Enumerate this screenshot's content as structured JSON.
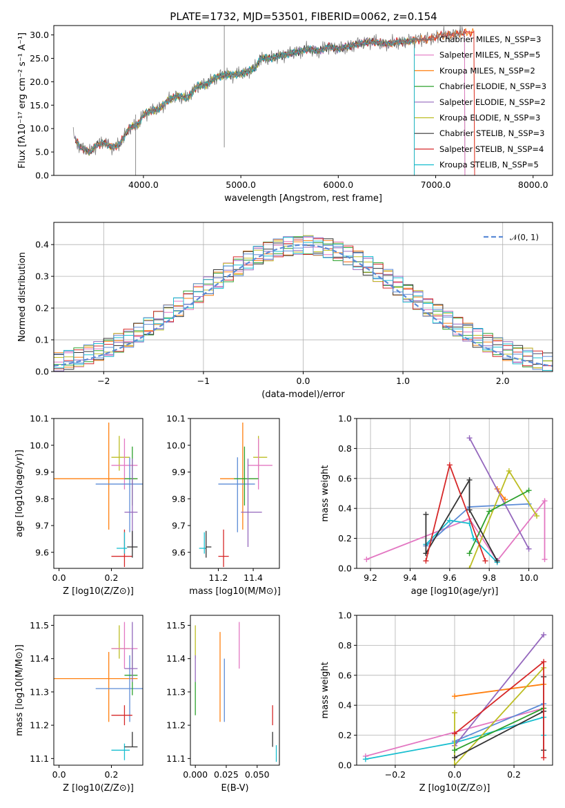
{
  "figure": {
    "title": "PLATE=1732, MJD=53501, FIBERID=0062, z=0.154"
  },
  "chart_data": [
    {
      "id": "spectrum",
      "type": "line",
      "xlabel": "wavelength [Angstrom, rest frame]",
      "ylabel": "Flux [fλ10⁻¹⁷ erg cm⁻² s⁻¹ A⁻¹]",
      "xlim": [
        3080,
        8200
      ],
      "ylim": [
        0,
        32
      ],
      "xticks": [
        4000,
        5000,
        6000,
        7000,
        8000
      ],
      "yticks": [
        0,
        5,
        10,
        15,
        20,
        25,
        30
      ],
      "grid": false,
      "legend_position": "top-right",
      "observed": {
        "color": "#7f7f7f",
        "x": [
          3280,
          3350,
          3450,
          3520,
          3600,
          3680,
          3750,
          3850,
          3950,
          4000,
          4100,
          4150,
          4250,
          4350,
          4450,
          4550,
          4650,
          4750,
          4850,
          4950,
          5050,
          5150,
          5200,
          5300,
          5400,
          5500,
          5600,
          5700,
          5800,
          5900,
          6000,
          6100,
          6200,
          6300,
          6400,
          6500,
          6600,
          6700,
          6800,
          6900,
          7000,
          7050,
          7150,
          7300
        ],
        "y": [
          8.5,
          6.0,
          5.0,
          6.5,
          7.0,
          6.0,
          6.5,
          10.0,
          11.0,
          13.0,
          14.0,
          14.0,
          16.0,
          17.0,
          16.5,
          19.0,
          19.5,
          21.0,
          21.5,
          21.5,
          22.0,
          23.0,
          25.0,
          25.0,
          25.5,
          26.0,
          26.5,
          27.0,
          26.5,
          27.5,
          27.0,
          27.5,
          28.0,
          28.5,
          28.5,
          28.0,
          28.5,
          28.5,
          29.0,
          29.0,
          29.5,
          30.0,
          30.0,
          30.5
        ]
      },
      "features": [
        {
          "x": 4830,
          "y_low": 6,
          "y_high": 32
        },
        {
          "x": 3920,
          "y_low": 0,
          "y_high": 13
        }
      ],
      "series": [
        {
          "name": "Chabrier MILES, N_SSP=3",
          "color": "#777777",
          "x_end": 7300
        },
        {
          "name": "Salpeter MILES, N_SSP=5",
          "color": "#e377c2",
          "x_end": 7300
        },
        {
          "name": "Kroupa MILES, N_SSP=2",
          "color": "#ff7f0e",
          "x_end": 7400
        },
        {
          "name": "Chabrier ELODIE, N_SSP=3",
          "color": "#2ca02c",
          "x_end": 6780
        },
        {
          "name": "Salpeter ELODIE, N_SSP=2",
          "color": "#9467bd",
          "x_end": 6780
        },
        {
          "name": "Kroupa ELODIE, N_SSP=3",
          "color": "#bcbd22",
          "x_end": 6780
        },
        {
          "name": "Chabrier STELIB, N_SSP=3",
          "color": "#333333",
          "x_end": 6780
        },
        {
          "name": "Salpeter STELIB, N_SSP=4",
          "color": "#d62728",
          "x_end": 7400
        },
        {
          "name": "Kroupa STELIB, N_SSP=5",
          "color": "#17becf",
          "x_end": 6780
        }
      ]
    },
    {
      "id": "residuals",
      "type": "histogram",
      "xlabel": "(data-model)/error",
      "ylabel": "Normed distribution",
      "xlim": [
        -2.5,
        2.5
      ],
      "ylim": [
        0,
        0.47
      ],
      "xticks": [
        -2,
        -1,
        0,
        1,
        2
      ],
      "yticks": [
        0.0,
        0.1,
        0.2,
        0.3,
        0.4
      ],
      "grid": true,
      "legend": [
        {
          "label": "𝒩(0, 1)",
          "style": "dashed",
          "color": "#5b8bd6"
        }
      ],
      "legend_position": "top-right",
      "bin_edges": [
        -2.5,
        -2.4,
        -2.3,
        -2.2,
        -2.1,
        -2.0,
        -1.9,
        -1.8,
        -1.7,
        -1.6,
        -1.5,
        -1.4,
        -1.3,
        -1.2,
        -1.1,
        -1.0,
        -0.9,
        -0.8,
        -0.7,
        -0.6,
        -0.5,
        -0.4,
        -0.3,
        -0.2,
        -0.1,
        0.0,
        0.1,
        0.2,
        0.3,
        0.4,
        0.5,
        0.6,
        0.7,
        0.8,
        0.9,
        1.0,
        1.1,
        1.2,
        1.3,
        1.4,
        1.5,
        1.6,
        1.7,
        1.8,
        1.9,
        2.0,
        2.1,
        2.2,
        2.3,
        2.4,
        2.5
      ],
      "hist_colors": [
        "#e377c2",
        "#ff7f0e",
        "#2ca02c",
        "#9467bd",
        "#bcbd22",
        "#333333",
        "#d62728",
        "#17becf",
        "#5b8bd6"
      ],
      "spread": 0.03
    },
    {
      "id": "age_vs_Z",
      "type": "errorbar",
      "xlabel": "Z [log10(Z/Z⊙)]",
      "ylabel": "age  [log10(age/yr)]",
      "xlim": [
        -0.02,
        0.32
      ],
      "ylim": [
        9.54,
        10.1
      ],
      "xticks": [
        0.0,
        0.2
      ],
      "yticks": [
        9.6,
        9.7,
        9.8,
        9.9,
        10.0,
        10.1
      ],
      "points": [
        {
          "x": 0.19,
          "y": 9.875,
          "xerr": [
            0.21,
            0.11
          ],
          "yerr": [
            0.19,
            0.21
          ],
          "color": "#ff7f0e"
        },
        {
          "x": 0.23,
          "y": 9.955,
          "xerr": [
            0.03,
            0.04
          ],
          "yerr": [
            0.05,
            0.08
          ],
          "color": "#bcbd22"
        },
        {
          "x": 0.25,
          "y": 9.925,
          "xerr": [
            0.05,
            0.05
          ],
          "yerr": [
            0.09,
            0.1
          ],
          "color": "#e377c2"
        },
        {
          "x": 0.27,
          "y": 9.855,
          "xerr": [
            0.13,
            0.05
          ],
          "yerr": [
            0.18,
            0.1
          ],
          "color": "#5b8bd6"
        },
        {
          "x": 0.28,
          "y": 9.875,
          "xerr": [
            0.03,
            0.02
          ],
          "yerr": [
            0.1,
            0.12
          ],
          "color": "#2ca02c"
        },
        {
          "x": 0.28,
          "y": 9.75,
          "xerr": [
            0.03,
            0.02
          ],
          "yerr": [
            0.13,
            0.2
          ],
          "color": "#9467bd"
        },
        {
          "x": 0.25,
          "y": 9.585,
          "xerr": [
            0.05,
            0.03
          ],
          "yerr": [
            0.04,
            0.1
          ],
          "color": "#d62728"
        },
        {
          "x": 0.25,
          "y": 9.615,
          "xerr": [
            0.03,
            0.01
          ],
          "yerr": [
            0.02,
            0.06
          ],
          "color": "#17becf"
        },
        {
          "x": 0.28,
          "y": 9.62,
          "xerr": [
            0.02,
            0.02
          ],
          "yerr": [
            0.04,
            0.06
          ],
          "color": "#333333"
        }
      ]
    },
    {
      "id": "age_vs_mass",
      "type": "errorbar",
      "xlabel": "mass [log10(M/M⊙)]",
      "ylabel": "",
      "xlim": [
        11.04,
        11.55
      ],
      "ylim": [
        9.54,
        10.1
      ],
      "xticks": [
        11.2,
        11.4
      ],
      "yticks": [
        9.6,
        9.7,
        9.8,
        9.9,
        10.0,
        10.1
      ],
      "points": [
        {
          "x": 11.34,
          "y": 9.875,
          "xerr": [
            0.13,
            0.08
          ],
          "yerr": [
            0.19,
            0.21
          ],
          "color": "#ff7f0e"
        },
        {
          "x": 11.43,
          "y": 9.955,
          "xerr": [
            0.03,
            0.05
          ],
          "yerr": [
            0.05,
            0.08
          ],
          "color": "#bcbd22"
        },
        {
          "x": 11.43,
          "y": 9.925,
          "xerr": [
            0.06,
            0.08
          ],
          "yerr": [
            0.09,
            0.1
          ],
          "color": "#e377c2"
        },
        {
          "x": 11.31,
          "y": 9.855,
          "xerr": [
            0.11,
            0.1
          ],
          "yerr": [
            0.18,
            0.1
          ],
          "color": "#5b8bd6"
        },
        {
          "x": 11.35,
          "y": 9.875,
          "xerr": [
            0.06,
            0.08
          ],
          "yerr": [
            0.1,
            0.12
          ],
          "color": "#2ca02c"
        },
        {
          "x": 11.37,
          "y": 9.75,
          "xerr": [
            0.04,
            0.08
          ],
          "yerr": [
            0.13,
            0.2
          ],
          "color": "#9467bd"
        },
        {
          "x": 11.23,
          "y": 9.585,
          "xerr": [
            0.03,
            0.03
          ],
          "yerr": [
            0.04,
            0.1
          ],
          "color": "#d62728"
        },
        {
          "x": 11.12,
          "y": 9.615,
          "xerr": [
            0.03,
            0.01
          ],
          "yerr": [
            0.02,
            0.06
          ],
          "color": "#17becf"
        },
        {
          "x": 11.13,
          "y": 9.62,
          "xerr": [
            0.0,
            0.03
          ],
          "yerr": [
            0.04,
            0.06
          ],
          "color": "#333333"
        }
      ]
    },
    {
      "id": "weight_vs_age",
      "type": "line",
      "xlabel": "age  [log10(age/yr)]",
      "ylabel": "mass weight",
      "xlim": [
        9.13,
        10.12
      ],
      "ylim": [
        0,
        1.0
      ],
      "xticks": [
        9.2,
        9.4,
        9.6,
        9.8,
        10.0
      ],
      "yticks": [
        0.0,
        0.2,
        0.4,
        0.6,
        0.8,
        1.0
      ],
      "grid": true,
      "series": [
        {
          "color": "#e377c2",
          "x": [
            9.18,
            9.7,
            9.84,
            10.08,
            10.08
          ],
          "y": [
            0.06,
            0.33,
            0.05,
            0.45,
            0.06
          ]
        },
        {
          "color": "#ff7f0e",
          "x": [
            9.84,
            9.88
          ],
          "y": [
            0.53,
            0.46
          ]
        },
        {
          "color": "#5b8bd6",
          "x": [
            9.48,
            9.7,
            10.0
          ],
          "y": [
            0.15,
            0.41,
            0.43
          ]
        },
        {
          "color": "#17becf",
          "x": [
            9.48,
            9.6,
            9.7,
            9.72,
            9.84
          ],
          "y": [
            0.16,
            0.32,
            0.3,
            0.2,
            0.04
          ]
        },
        {
          "color": "#9467bd",
          "x": [
            9.7,
            10.0
          ],
          "y": [
            0.87,
            0.13
          ]
        },
        {
          "color": "#bcbd22",
          "x": [
            9.7,
            9.9,
            10.04
          ],
          "y": [
            0.0,
            0.65,
            0.35
          ]
        },
        {
          "color": "#2ca02c",
          "x": [
            9.7,
            9.8,
            10.0
          ],
          "y": [
            0.1,
            0.38,
            0.52
          ]
        },
        {
          "color": "#333333",
          "x": [
            9.48,
            9.48,
            9.7,
            9.7,
            9.84
          ],
          "y": [
            0.36,
            0.1,
            0.59,
            0.39,
            0.05
          ]
        },
        {
          "color": "#d62728",
          "x": [
            9.48,
            9.6,
            9.78
          ],
          "y": [
            0.05,
            0.69,
            0.05
          ]
        }
      ]
    },
    {
      "id": "mass_vs_Z",
      "type": "errorbar",
      "xlabel": "Z [log10(Z/Z⊙)]",
      "ylabel": "mass [log10(M/M⊙)]",
      "xlim": [
        -0.02,
        0.32
      ],
      "ylim": [
        11.08,
        11.53
      ],
      "xticks": [
        0.0,
        0.2
      ],
      "yticks": [
        11.1,
        11.2,
        11.3,
        11.4,
        11.5
      ],
      "points": [
        {
          "x": 0.19,
          "y": 11.34,
          "xerr": [
            0.21,
            0.11
          ],
          "yerr": [
            0.13,
            0.08
          ],
          "color": "#ff7f0e"
        },
        {
          "x": 0.23,
          "y": 11.43,
          "xerr": [
            0.03,
            0.04
          ],
          "yerr": [
            0.03,
            0.07
          ],
          "color": "#bcbd22"
        },
        {
          "x": 0.25,
          "y": 11.43,
          "xerr": [
            0.05,
            0.05
          ],
          "yerr": [
            0.06,
            0.08
          ],
          "color": "#e377c2"
        },
        {
          "x": 0.27,
          "y": 11.31,
          "xerr": [
            0.13,
            0.05
          ],
          "yerr": [
            0.1,
            0.1
          ],
          "color": "#5b8bd6"
        },
        {
          "x": 0.28,
          "y": 11.35,
          "xerr": [
            0.03,
            0.02
          ],
          "yerr": [
            0.06,
            0.08
          ],
          "color": "#2ca02c"
        },
        {
          "x": 0.28,
          "y": 11.37,
          "xerr": [
            0.03,
            0.02
          ],
          "yerr": [
            0.04,
            0.14
          ],
          "color": "#9467bd"
        },
        {
          "x": 0.25,
          "y": 11.23,
          "xerr": [
            0.05,
            0.03
          ],
          "yerr": [
            0.03,
            0.03
          ],
          "color": "#d62728"
        },
        {
          "x": 0.25,
          "y": 11.125,
          "xerr": [
            0.05,
            0.02
          ],
          "yerr": [
            0.03,
            0.02
          ],
          "color": "#17becf"
        },
        {
          "x": 0.28,
          "y": 11.135,
          "xerr": [
            0.03,
            0.02
          ],
          "yerr": [
            0.0,
            0.045
          ],
          "color": "#333333"
        }
      ]
    },
    {
      "id": "mass_vs_EBV",
      "type": "errorbar",
      "xlabel": "E(B-V)",
      "ylabel": "",
      "xlim": [
        -0.004,
        0.068
      ],
      "ylim": [
        11.08,
        11.53
      ],
      "xticks": [
        0.0,
        0.025,
        0.05
      ],
      "xticklabels": [
        "0.000",
        "0.025",
        "0.050"
      ],
      "yticks": [
        11.1,
        11.2,
        11.3,
        11.4,
        11.5
      ],
      "points": [
        {
          "x": 0.0,
          "y": 11.43,
          "yerr": [
            0.03,
            0.07
          ],
          "color": "#bcbd22"
        },
        {
          "x": 0.0,
          "y": 11.37,
          "yerr": [
            0.04,
            0.04
          ],
          "color": "#9467bd"
        },
        {
          "x": 0.0,
          "y": 11.3,
          "yerr": [
            0.07,
            0.03
          ],
          "color": "#2ca02c"
        },
        {
          "x": 0.02,
          "y": 11.34,
          "yerr": [
            0.13,
            0.14
          ],
          "color": "#ff7f0e"
        },
        {
          "x": 0.0235,
          "y": 11.3,
          "yerr": [
            0.09,
            0.1
          ],
          "color": "#5b8bd6"
        },
        {
          "x": 0.0355,
          "y": 11.44,
          "yerr": [
            0.07,
            0.07
          ],
          "color": "#e377c2"
        },
        {
          "x": 0.0625,
          "y": 11.23,
          "yerr": [
            0.03,
            0.03
          ],
          "color": "#d62728"
        },
        {
          "x": 0.0625,
          "y": 11.16,
          "yerr": [
            0.025,
            0.02
          ],
          "color": "#333333"
        },
        {
          "x": 0.0655,
          "y": 11.12,
          "yerr": [
            0.03,
            0.02
          ],
          "color": "#17becf"
        }
      ]
    },
    {
      "id": "weight_vs_Z",
      "type": "line",
      "xlabel": "Z [log10(Z/Z⊙)]",
      "ylabel": "mass weight",
      "xlim": [
        -0.33,
        0.33
      ],
      "ylim": [
        0,
        1.0
      ],
      "xticks": [
        -0.2,
        0.0,
        0.2
      ],
      "yticks": [
        0.0,
        0.2,
        0.4,
        0.6,
        0.8,
        1.0
      ],
      "grid": true,
      "series": [
        {
          "color": "#e377c2",
          "x": [
            -0.3,
            0.3
          ],
          "y": [
            0.06,
            0.38
          ]
        },
        {
          "color": "#17becf",
          "x": [
            -0.3,
            0.0,
            0.3,
            0.3
          ],
          "y": [
            0.04,
            0.15,
            0.32,
            0.2
          ]
        },
        {
          "color": "#ff7f0e",
          "x": [
            0.0,
            0.3
          ],
          "y": [
            0.46,
            0.54
          ]
        },
        {
          "color": "#5b8bd6",
          "x": [
            0.0,
            0.3
          ],
          "y": [
            0.16,
            0.41
          ]
        },
        {
          "color": "#9467bd",
          "x": [
            0.0,
            0.3
          ],
          "y": [
            0.13,
            0.87
          ]
        },
        {
          "color": "#bcbd22",
          "x": [
            0.0,
            0.0,
            0.3
          ],
          "y": [
            0.35,
            0.0,
            0.65
          ]
        },
        {
          "color": "#2ca02c",
          "x": [
            0.0,
            0.3
          ],
          "y": [
            0.1,
            0.38
          ]
        },
        {
          "color": "#333333",
          "x": [
            0.0,
            0.3,
            0.3,
            0.3
          ],
          "y": [
            0.05,
            0.36,
            0.59,
            0.1
          ]
        },
        {
          "color": "#d62728",
          "x": [
            0.0,
            0.3,
            0.3
          ],
          "y": [
            0.21,
            0.69,
            0.05
          ]
        }
      ]
    }
  ]
}
